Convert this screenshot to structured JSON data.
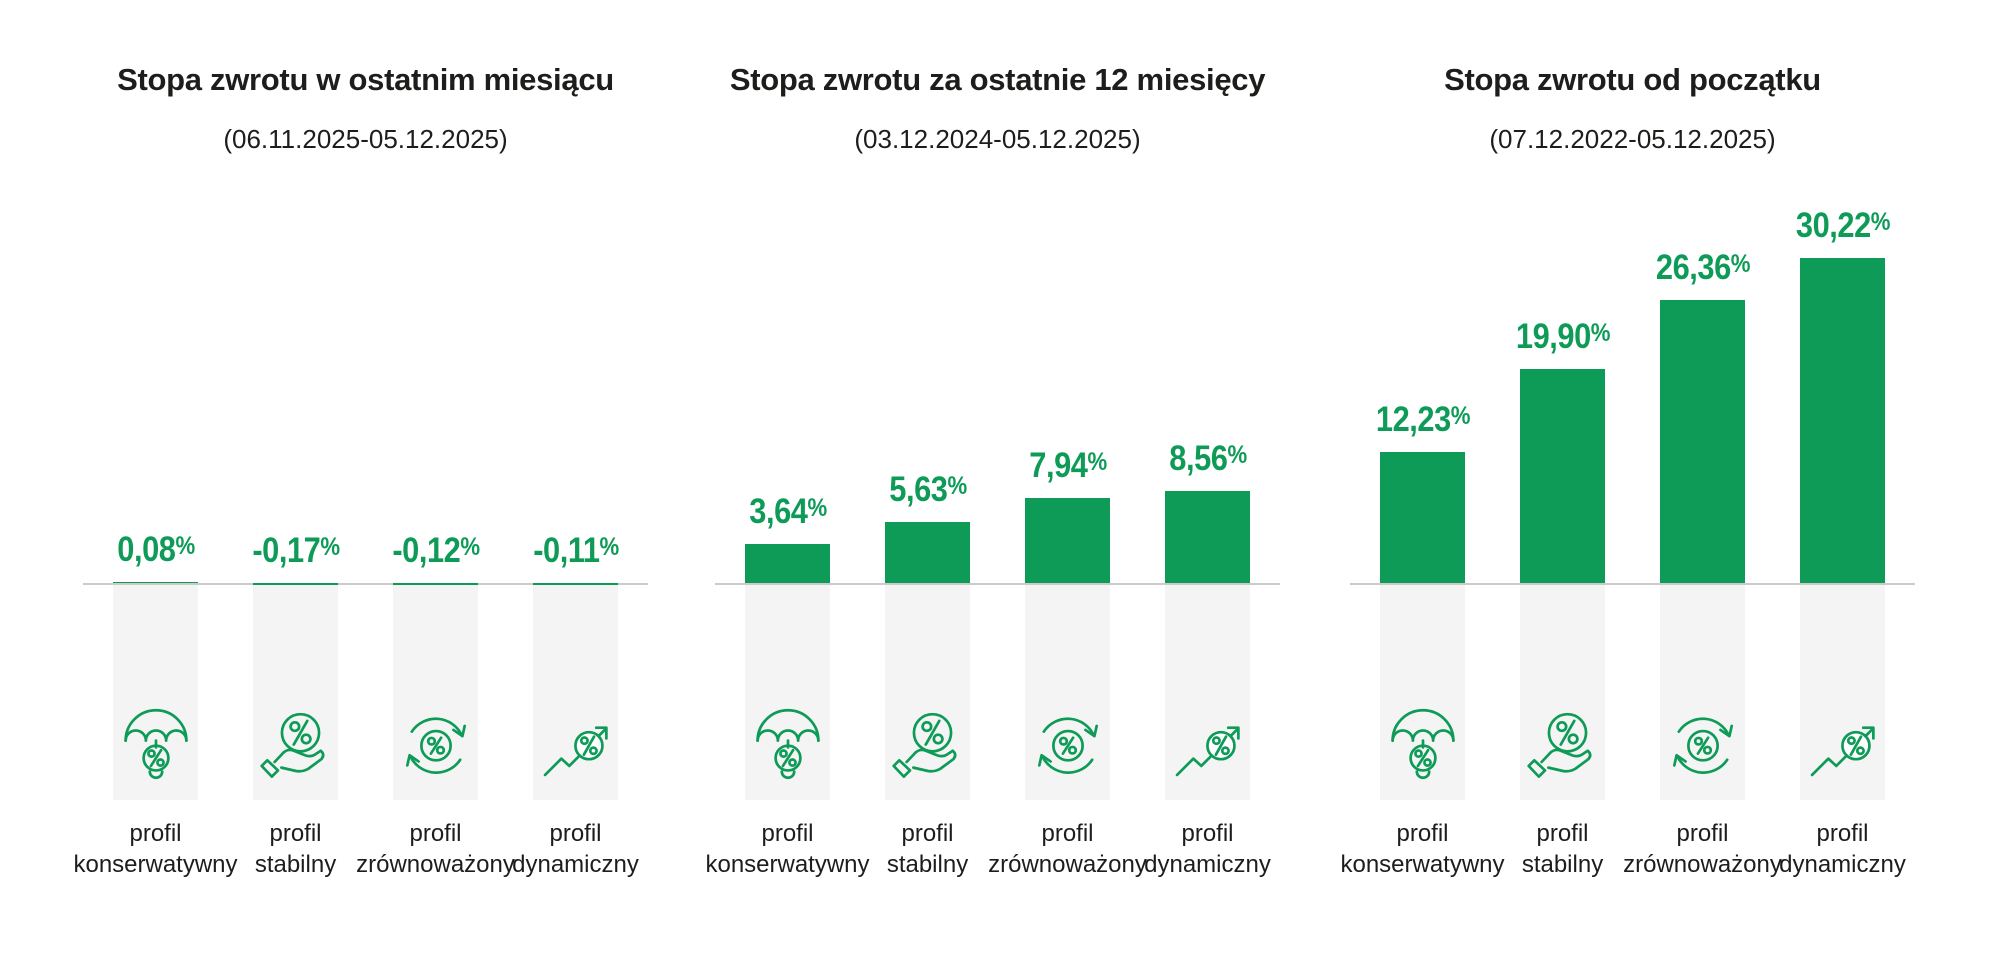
{
  "style": {
    "accent_green": "#0d9b57",
    "shadow_gray": "#f4f4f4",
    "baseline_gray": "#cbcbcb",
    "text_color": "#1d1d1b",
    "background": "#ffffff"
  },
  "chart_data": [
    {
      "type": "bar",
      "title": "Stopa zwrotu w ostatnim miesiącu",
      "subtitle": "(06.11.2025-05.12.2025)",
      "unit": "%",
      "bar_color": "#0d9b57",
      "categories": [
        "profil konserwatywny",
        "profil stabilny",
        "profil zrównoważony",
        "profil dynamiczny"
      ],
      "categories_lines": [
        [
          "profil",
          "konserwatywny"
        ],
        [
          "profil",
          "stabilny"
        ],
        [
          "profil",
          "zrównoważony"
        ],
        [
          "profil",
          "dynamiczny"
        ]
      ],
      "values": [
        0.08,
        -0.17,
        -0.12,
        -0.11
      ],
      "labels": [
        "0,08%",
        "-0,17%",
        "-0,12%",
        "-0,11%"
      ],
      "icons": [
        "umbrella-percent",
        "hand-holding-percent",
        "cycle-percent",
        "trend-up-percent"
      ],
      "axis": {
        "baseline": 0,
        "gridlines": false,
        "value_labels": "above-bars"
      }
    },
    {
      "type": "bar",
      "title": "Stopa zwrotu za ostatnie 12 miesięcy",
      "subtitle": "(03.12.2024-05.12.2025)",
      "unit": "%",
      "bar_color": "#0d9b57",
      "categories": [
        "profil konserwatywny",
        "profil stabilny",
        "profil zrównoważony",
        "profil dynamiczny"
      ],
      "categories_lines": [
        [
          "profil",
          "konserwatywny"
        ],
        [
          "profil",
          "stabilny"
        ],
        [
          "profil",
          "zrównoważony"
        ],
        [
          "profil",
          "dynamiczny"
        ]
      ],
      "values": [
        3.64,
        5.63,
        7.94,
        8.56
      ],
      "labels": [
        "3,64%",
        "5,63%",
        "7,94%",
        "8,56%"
      ],
      "icons": [
        "umbrella-percent",
        "hand-holding-percent",
        "cycle-percent",
        "trend-up-percent"
      ],
      "axis": {
        "baseline": 0,
        "gridlines": false,
        "value_labels": "above-bars"
      }
    },
    {
      "type": "bar",
      "title": "Stopa zwrotu od początku",
      "subtitle": "(07.12.2022-05.12.2025)",
      "unit": "%",
      "bar_color": "#0d9b57",
      "categories": [
        "profil konserwatywny",
        "profil stabilny",
        "profil zrównoważony",
        "profil dynamiczny"
      ],
      "categories_lines": [
        [
          "profil",
          "konserwatywny"
        ],
        [
          "profil",
          "stabilny"
        ],
        [
          "profil",
          "zrównoważony"
        ],
        [
          "profil",
          "dynamiczny"
        ]
      ],
      "values": [
        12.23,
        19.9,
        26.36,
        30.22
      ],
      "labels": [
        "12,23%",
        "19,90%",
        "26,36%",
        "30,22%"
      ],
      "icons": [
        "umbrella-percent",
        "hand-holding-percent",
        "cycle-percent",
        "trend-up-percent"
      ],
      "axis": {
        "baseline": 0,
        "gridlines": false,
        "value_labels": "above-bars"
      }
    }
  ]
}
